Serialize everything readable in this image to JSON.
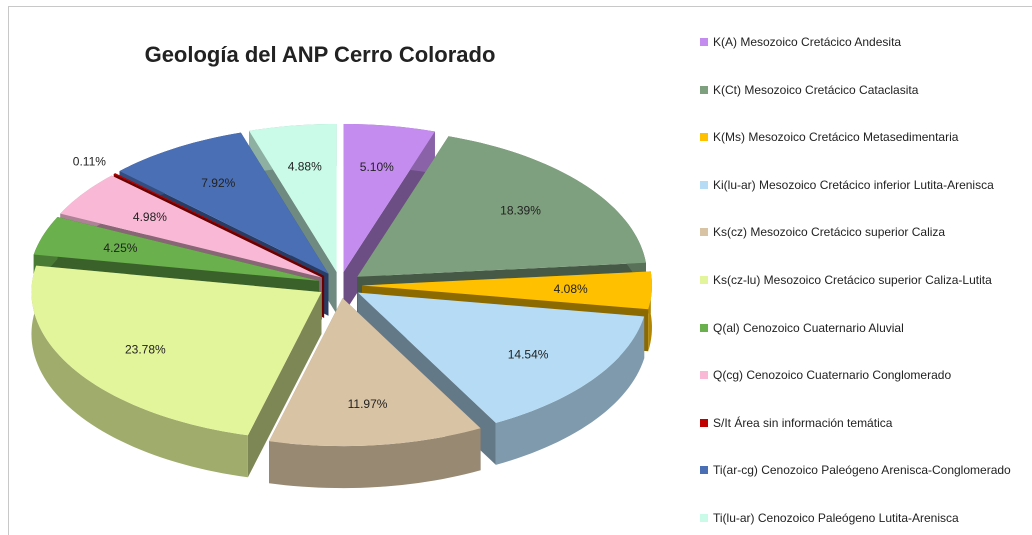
{
  "chart_data": {
    "type": "pie",
    "title": "Geología del ANP Cerro Colorado",
    "categories": [
      "K(A) Mesozoico Cretácico Andesita",
      "K(Ct) Mesozoico Cretácico Cataclasita",
      "K(Ms) Mesozoico Cretácico Metasedimentaria",
      "Ki(lu-ar) Mesozoico Cretácico inferior Lutita-Arenisca",
      "Ks(cz) Mesozoico Cretácico superior Caliza",
      "Ks(cz-lu) Mesozoico Cretácico superior Caliza-Lutita",
      "Q(al) Cenozoico Cuaternario Aluvial",
      "Q(cg) Cenozoico Cuaternario Conglomerado",
      "S/It Área sin información temática",
      "Ti(ar-cg) Cenozoico Paleógeno Arenisca-Conglomerado",
      "Ti(lu-ar) Cenozoico Paleógeno Lutita-Arenisca"
    ],
    "values": [
      5.1,
      18.39,
      4.08,
      14.54,
      11.97,
      23.78,
      4.25,
      4.98,
      0.11,
      7.92,
      4.88
    ],
    "value_labels": [
      "5.10%",
      "18.39%",
      "4.08%",
      "14.54%",
      "11.97%",
      "23.78%",
      "4.25%",
      "4.98%",
      "0.11%",
      "7.92%",
      "4.88%"
    ],
    "colors": [
      "#c58cf0",
      "#7fa07f",
      "#ffc000",
      "#b6dcf5",
      "#d9c3a5",
      "#e3f59a",
      "#6ab04c",
      "#f9b9d6",
      "#c00000",
      "#4a6fb5",
      "#c9fbe8"
    ],
    "legend": "right"
  }
}
